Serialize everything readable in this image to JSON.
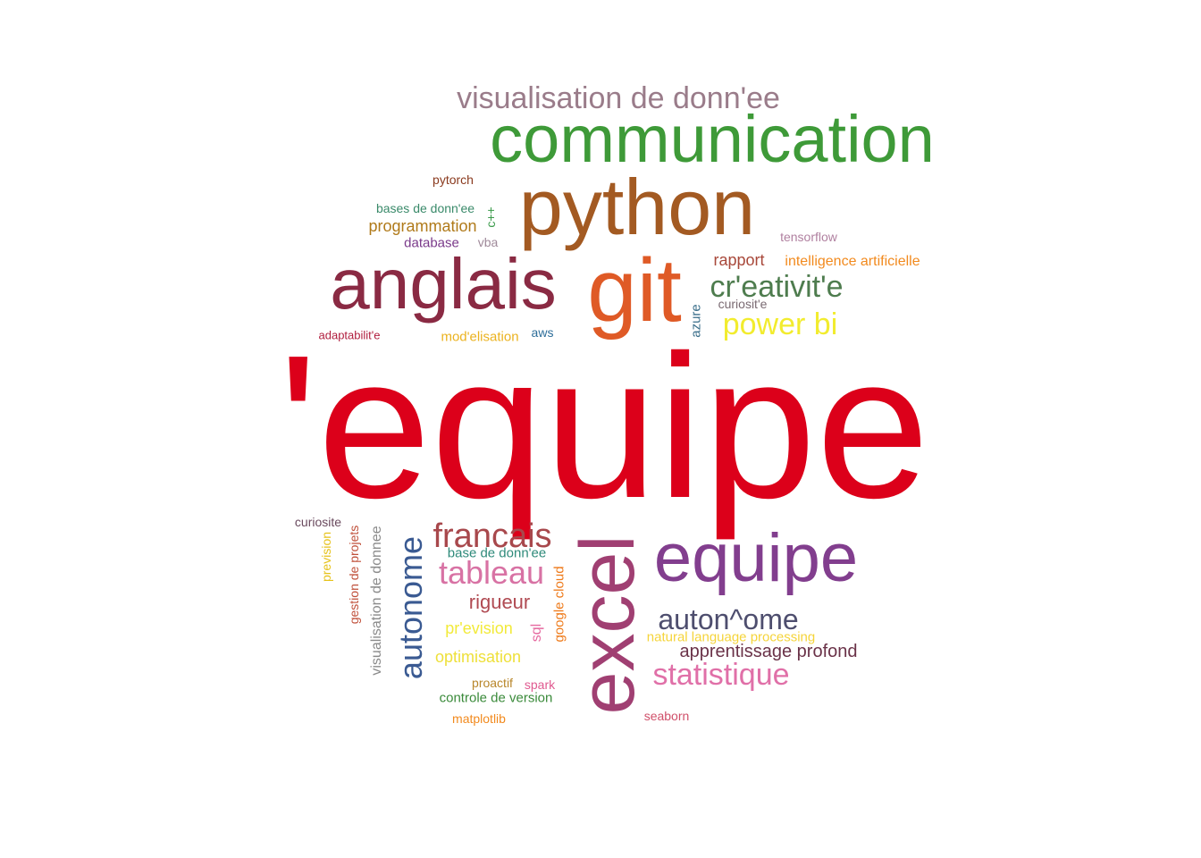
{
  "words": [
    {
      "text": "'equipe",
      "color": "#DC001A"
    },
    {
      "text": "communication",
      "color": "#3E9A38"
    },
    {
      "text": "python",
      "color": "#A35A22"
    },
    {
      "text": "git",
      "color": "#DF5A26"
    },
    {
      "text": "anglais",
      "color": "#8A2A43"
    },
    {
      "text": "excel",
      "color": "#A03F72"
    },
    {
      "text": "equipe",
      "color": "#823E8E"
    },
    {
      "text": "visualisation de donn'ee",
      "color": "#9A7C8A"
    },
    {
      "text": "cr'eativit'e",
      "color": "#4E7C4E"
    },
    {
      "text": "power bi",
      "color": "#F2EC2E"
    },
    {
      "text": "francais",
      "color": "#A8484C"
    },
    {
      "text": "tableau",
      "color": "#D872A4"
    },
    {
      "text": "autonome",
      "color": "#3A5A92"
    },
    {
      "text": "auton^ome",
      "color": "#4E4E6E"
    },
    {
      "text": "statistique",
      "color": "#E070A8"
    },
    {
      "text": "rigueur",
      "color": "#B04A52"
    },
    {
      "text": "apprentissage profond",
      "color": "#6A3248"
    },
    {
      "text": "rapport",
      "color": "#A8483A"
    },
    {
      "text": "intelligence artificielle",
      "color": "#F28A1E"
    },
    {
      "text": "tensorflow",
      "color": "#B080A0"
    },
    {
      "text": "curiosit'e",
      "color": "#7A6A72"
    },
    {
      "text": "azure",
      "color": "#3A6E8A"
    },
    {
      "text": "pytorch",
      "color": "#8A3A1E"
    },
    {
      "text": "bases de donn'ee",
      "color": "#3A8A6A"
    },
    {
      "text": "programmation",
      "color": "#B07A1A"
    },
    {
      "text": "c++",
      "color": "#3A9A4A"
    },
    {
      "text": "database",
      "color": "#7A3A8A"
    },
    {
      "text": "vba",
      "color": "#A08A9A"
    },
    {
      "text": "adaptabilit'e",
      "color": "#B01E3E"
    },
    {
      "text": "mod'elisation",
      "color": "#EBB21E"
    },
    {
      "text": "aws",
      "color": "#2E6E9A"
    },
    {
      "text": "curiosite",
      "color": "#6A4A5E"
    },
    {
      "text": "prevision",
      "color": "#E6C21A"
    },
    {
      "text": "gestion de projets",
      "color": "#C0503A"
    },
    {
      "text": "visualisation de donnee",
      "color": "#8A8A8A"
    },
    {
      "text": "base de donn'ee",
      "color": "#2E8A7A"
    },
    {
      "text": "google cloud",
      "color": "#EE7A1A"
    },
    {
      "text": "sql",
      "color": "#E66AA0"
    },
    {
      "text": "pr'evision",
      "color": "#F2EA3A"
    },
    {
      "text": "optimisation",
      "color": "#EEE03A"
    },
    {
      "text": "proactif",
      "color": "#B8862A"
    },
    {
      "text": "spark",
      "color": "#E05A90"
    },
    {
      "text": "controle de version",
      "color": "#3A8A3A"
    },
    {
      "text": "matplotlib",
      "color": "#F28A1E"
    },
    {
      "text": "natural language processing",
      "color": "#F5D43A"
    },
    {
      "text": "seaborn",
      "color": "#D0506A"
    }
  ]
}
